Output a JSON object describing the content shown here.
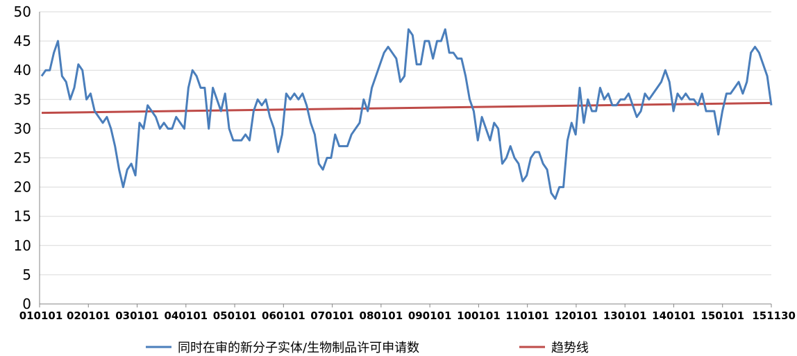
{
  "chart_data": {
    "type": "line",
    "title": "",
    "xlabel": "",
    "ylabel": "",
    "ylim": [
      0,
      50
    ],
    "yticks": [
      0,
      5,
      10,
      15,
      20,
      25,
      30,
      35,
      40,
      45,
      50
    ],
    "x_tick_labels": [
      "010101",
      "020101",
      "030101",
      "040101",
      "050101",
      "060101",
      "070101",
      "080101",
      "090101",
      "100101",
      "110101",
      "120101",
      "130101",
      "140101",
      "150101",
      "151130"
    ],
    "grid": "horizontal",
    "legend_position": "bottom",
    "series": [
      {
        "name": "同时在审的新分子实体/生物制品许可申请数",
        "color": "#4A7EBB",
        "values": [
          39,
          40,
          40,
          43,
          45,
          39,
          38,
          35,
          37,
          41,
          40,
          35,
          36,
          33,
          32,
          31,
          32,
          30,
          27,
          23,
          20,
          23,
          24,
          22,
          31,
          30,
          34,
          33,
          32,
          30,
          31,
          30,
          30,
          32,
          31,
          30,
          37,
          40,
          39,
          37,
          37,
          30,
          37,
          35,
          33,
          36,
          30,
          28,
          28,
          28,
          29,
          28,
          33,
          35,
          34,
          35,
          32,
          30,
          26,
          29,
          36,
          35,
          36,
          35,
          36,
          34,
          31,
          29,
          24,
          23,
          25,
          25,
          29,
          27,
          27,
          27,
          29,
          30,
          31,
          35,
          33,
          37,
          39,
          41,
          43,
          44,
          43,
          42,
          38,
          39,
          47,
          46,
          41,
          41,
          45,
          45,
          42,
          45,
          45,
          47,
          43,
          43,
          42,
          42,
          39,
          35,
          33,
          28,
          32,
          30,
          28,
          31,
          30,
          24,
          25,
          27,
          25,
          24,
          21,
          22,
          25,
          26,
          26,
          24,
          23,
          19,
          18,
          20,
          20,
          28,
          31,
          29,
          37,
          31,
          35,
          33,
          33,
          37,
          35,
          36,
          34,
          34,
          35,
          35,
          36,
          34,
          32,
          33,
          36,
          35,
          36,
          37,
          38,
          40,
          38,
          33,
          36,
          35,
          36,
          35,
          35,
          34,
          36,
          33,
          33,
          33,
          29,
          33,
          36,
          36,
          37,
          38,
          36,
          38,
          43,
          44,
          43,
          41,
          39,
          34
        ]
      },
      {
        "name": "趋势线",
        "color": "#BE4B48",
        "start": 32.7,
        "end": 34.4
      }
    ]
  }
}
